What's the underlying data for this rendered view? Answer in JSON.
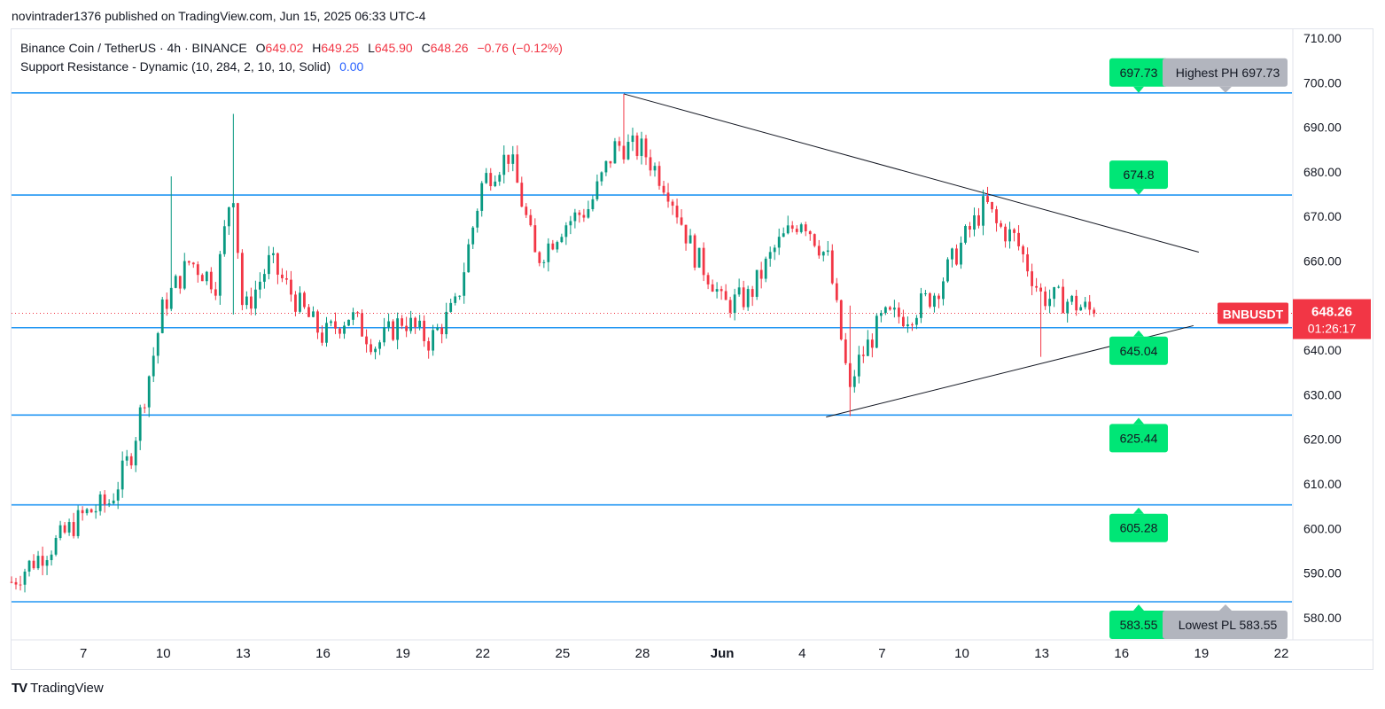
{
  "header": {
    "publisher": "novintrader1376",
    "published_text": "published on TradingView.com, Jun 15, 2025 06:33 UTC-4"
  },
  "legend": {
    "symbol_line": "Binance Coin / TetherUS · 4h · BINANCE",
    "o_label": "O",
    "o_value": "649.02",
    "h_label": "H",
    "h_value": "649.25",
    "l_label": "L",
    "l_value": "645.90",
    "c_label": "C",
    "c_value": "648.26",
    "change": "−0.76 (−0.12%)",
    "indicator": "Support Resistance - Dynamic (10, 284, 2, 10, 10, Solid)",
    "indicator_value": "0.00"
  },
  "footer": {
    "brand": "TradingView",
    "logo": "TV"
  },
  "chart_data": {
    "type": "candlestick",
    "symbol": "BNBUSDT",
    "timeframe": "4h",
    "ylim": [
      575,
      712
    ],
    "y_ticks": [
      "580.00",
      "590.00",
      "600.00",
      "610.00",
      "620.00",
      "630.00",
      "640.00",
      "650.00",
      "660.00",
      "670.00",
      "680.00",
      "690.00",
      "700.00",
      "710.00"
    ],
    "x_ticks": [
      {
        "label": "7",
        "day": 7
      },
      {
        "label": "10",
        "day": 10
      },
      {
        "label": "13",
        "day": 13
      },
      {
        "label": "16",
        "day": 16
      },
      {
        "label": "19",
        "day": 19
      },
      {
        "label": "22",
        "day": 22
      },
      {
        "label": "25",
        "day": 25
      },
      {
        "label": "28",
        "day": 28
      },
      {
        "label": "Jun",
        "day": 31
      },
      {
        "label": "4",
        "day": 34
      },
      {
        "label": "7",
        "day": 37
      },
      {
        "label": "10",
        "day": 40
      },
      {
        "label": "13",
        "day": 43
      },
      {
        "label": "16",
        "day": 46
      },
      {
        "label": "19",
        "day": 49
      },
      {
        "label": "22",
        "day": 52
      }
    ],
    "x_range_days": [
      4.3,
      52.4
    ],
    "current_price": {
      "label": "BNBUSDT",
      "price": "648.26",
      "countdown": "01:26:17",
      "value": 648.26
    },
    "levels": [
      {
        "value": 697.73,
        "label": "697.73",
        "note": "Highest PH 697.73"
      },
      {
        "value": 674.8,
        "label": "674.8",
        "note": ""
      },
      {
        "value": 645.04,
        "label": "645.04",
        "note": ""
      },
      {
        "value": 625.44,
        "label": "625.44",
        "note": ""
      },
      {
        "value": 605.28,
        "label": "605.28",
        "note": ""
      },
      {
        "value": 583.55,
        "label": "583.55",
        "note": "Lowest PL 583.55"
      }
    ],
    "trendlines": [
      {
        "x1": 27.3,
        "y1": 697.5,
        "x2": 48.9,
        "y2": 662.0
      },
      {
        "x1": 34.9,
        "y1": 625.0,
        "x2": 48.7,
        "y2": 645.5
      }
    ],
    "price_path": [
      [
        4.3,
        588
      ],
      [
        5,
        592
      ],
      [
        6,
        597
      ],
      [
        7,
        603
      ],
      [
        8,
        606
      ],
      [
        8.8,
        617
      ],
      [
        9.6,
        638
      ],
      [
        10,
        650
      ],
      [
        11,
        660
      ],
      [
        12,
        655
      ],
      [
        12.6,
        678
      ],
      [
        13,
        648
      ],
      [
        14,
        660
      ],
      [
        15,
        651
      ],
      [
        16,
        643
      ],
      [
        17,
        648
      ],
      [
        18,
        641
      ],
      [
        19,
        647
      ],
      [
        20,
        642
      ],
      [
        21,
        650
      ],
      [
        22,
        678
      ],
      [
        23,
        684
      ],
      [
        23.7,
        668
      ],
      [
        24,
        660
      ],
      [
        25,
        668
      ],
      [
        26,
        672
      ],
      [
        27,
        686
      ],
      [
        28,
        685
      ],
      [
        29,
        676
      ],
      [
        29.9,
        662
      ],
      [
        30.7,
        655
      ],
      [
        31,
        650
      ],
      [
        32,
        652
      ],
      [
        33,
        663
      ],
      [
        34,
        670
      ],
      [
        35,
        660
      ],
      [
        35.8,
        630
      ],
      [
        36,
        636
      ],
      [
        37,
        647
      ],
      [
        38,
        648
      ],
      [
        39,
        653
      ],
      [
        40,
        664
      ],
      [
        40.9,
        673
      ],
      [
        41.3,
        668
      ],
      [
        42,
        665
      ],
      [
        43,
        652
      ],
      [
        44,
        651
      ],
      [
        45,
        648.26
      ]
    ],
    "wick_spikes": [
      {
        "x": 12.6,
        "high": 693,
        "low": 648
      },
      {
        "x": 10.3,
        "high": 679,
        "low": 650
      },
      {
        "x": 35.8,
        "high": 650,
        "low": 625.2
      },
      {
        "x": 43.0,
        "high": 655,
        "low": 638.5
      },
      {
        "x": 27.3,
        "high": 697.5,
        "low": 686
      }
    ]
  }
}
